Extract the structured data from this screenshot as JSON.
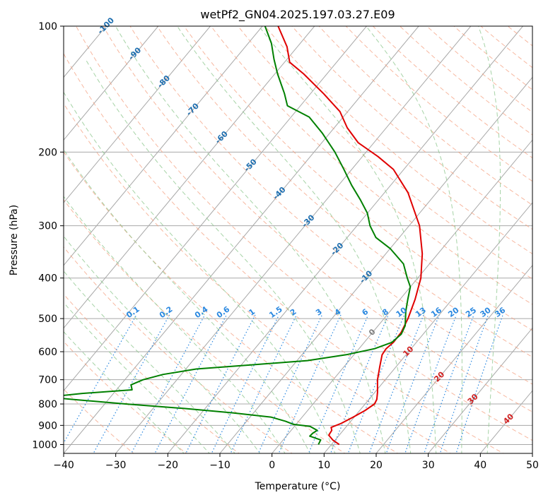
{
  "chart_data": {
    "type": "skew-t log-p",
    "title": "wetPf2_GN04.2025.197.03.27.E09",
    "xlabel": "Temperature (°C)",
    "ylabel": "Pressure (hPa)",
    "xlim": [
      -40,
      50
    ],
    "ylim": [
      1050,
      100
    ],
    "y_scale": "log",
    "grid": true,
    "x_ticks": [
      -40,
      -30,
      -20,
      -10,
      0,
      10,
      20,
      30,
      40,
      50
    ],
    "x_tick_labels": [
      "−40",
      "−30",
      "−20",
      "−10",
      "0",
      "10",
      "20",
      "30",
      "40",
      "50"
    ],
    "y_ticks": [
      100,
      200,
      300,
      400,
      500,
      600,
      700,
      800,
      900,
      1000
    ],
    "y_tick_labels": [
      "100",
      "200",
      "300",
      "400",
      "500",
      "600",
      "700",
      "800",
      "900",
      "1000"
    ],
    "series": [
      {
        "color": "#e00000",
        "points": [
          {
            "p": 1000,
            "t": 11.5
          },
          {
            "p": 975,
            "t": 9.5
          },
          {
            "p": 950,
            "t": 8.0
          },
          {
            "p": 925,
            "t": 7.8
          },
          {
            "p": 910,
            "t": 7.2
          },
          {
            "p": 890,
            "t": 8.5
          },
          {
            "p": 860,
            "t": 9.8
          },
          {
            "p": 830,
            "t": 11.0
          },
          {
            "p": 800,
            "t": 11.8
          },
          {
            "p": 780,
            "t": 11.5
          },
          {
            "p": 750,
            "t": 10.5
          },
          {
            "p": 700,
            "t": 8.5
          },
          {
            "p": 650,
            "t": 6.8
          },
          {
            "p": 610,
            "t": 5.4
          },
          {
            "p": 590,
            "t": 5.2
          },
          {
            "p": 570,
            "t": 5.6
          },
          {
            "p": 540,
            "t": 5.5
          },
          {
            "p": 500,
            "t": 4.6
          },
          {
            "p": 450,
            "t": 2.9
          },
          {
            "p": 400,
            "t": 0.6
          },
          {
            "p": 350,
            "t": -3.0
          },
          {
            "p": 300,
            "t": -8.0
          },
          {
            "p": 250,
            "t": -15.5
          },
          {
            "p": 220,
            "t": -22.0
          },
          {
            "p": 205,
            "t": -27.0
          },
          {
            "p": 190,
            "t": -33.0
          },
          {
            "p": 175,
            "t": -37.5
          },
          {
            "p": 160,
            "t": -41.5
          },
          {
            "p": 145,
            "t": -47.5
          },
          {
            "p": 130,
            "t": -54.5
          },
          {
            "p": 122,
            "t": -59.0
          },
          {
            "p": 112,
            "t": -62.0
          },
          {
            "p": 100,
            "t": -67.0
          }
        ]
      },
      {
        "color": "#008000",
        "points": [
          {
            "p": 1000,
            "t": 7.5
          },
          {
            "p": 975,
            "t": 7.2
          },
          {
            "p": 955,
            "t": 4.5
          },
          {
            "p": 940,
            "t": 4.6
          },
          {
            "p": 925,
            "t": 5.0
          },
          {
            "p": 905,
            "t": 3.0
          },
          {
            "p": 895,
            "t": -0.5
          },
          {
            "p": 880,
            "t": -2.5
          },
          {
            "p": 860,
            "t": -6.0
          },
          {
            "p": 840,
            "t": -14.0
          },
          {
            "p": 820,
            "t": -24.0
          },
          {
            "p": 800,
            "t": -36.0
          },
          {
            "p": 780,
            "t": -47.0
          },
          {
            "p": 770,
            "t": -52.0
          },
          {
            "p": 755,
            "t": -46.0
          },
          {
            "p": 740,
            "t": -37.0
          },
          {
            "p": 720,
            "t": -38.0
          },
          {
            "p": 700,
            "t": -36.5
          },
          {
            "p": 680,
            "t": -33.5
          },
          {
            "p": 660,
            "t": -28.0
          },
          {
            "p": 645,
            "t": -18.0
          },
          {
            "p": 630,
            "t": -8.0
          },
          {
            "p": 610,
            "t": -1.5
          },
          {
            "p": 590,
            "t": 3.0
          },
          {
            "p": 570,
            "t": 5.3
          },
          {
            "p": 545,
            "t": 5.8
          },
          {
            "p": 520,
            "t": 5.2
          },
          {
            "p": 480,
            "t": 3.0
          },
          {
            "p": 450,
            "t": 1.5
          },
          {
            "p": 420,
            "t": 0.0
          },
          {
            "p": 400,
            "t": -2.0
          },
          {
            "p": 370,
            "t": -5.0
          },
          {
            "p": 340,
            "t": -10.0
          },
          {
            "p": 320,
            "t": -14.5
          },
          {
            "p": 300,
            "t": -17.5
          },
          {
            "p": 280,
            "t": -20.0
          },
          {
            "p": 260,
            "t": -23.5
          },
          {
            "p": 240,
            "t": -27.5
          },
          {
            "p": 220,
            "t": -31.5
          },
          {
            "p": 200,
            "t": -36.0
          },
          {
            "p": 180,
            "t": -41.5
          },
          {
            "p": 165,
            "t": -46.5
          },
          {
            "p": 155,
            "t": -52.5
          },
          {
            "p": 145,
            "t": -55.0
          },
          {
            "p": 130,
            "t": -59.5
          },
          {
            "p": 120,
            "t": -62.5
          },
          {
            "p": 110,
            "t": -65.5
          },
          {
            "p": 100,
            "t": -69.5
          }
        ]
      }
    ],
    "mixing_ratio_labels": [
      "0.1",
      "0.2",
      "0.4",
      "0.6",
      "1",
      "1.5",
      "2",
      "3",
      "4",
      "6",
      "8",
      "10",
      "13",
      "16",
      "20",
      "25",
      "30",
      "36"
    ],
    "mixing_ratio_values": [
      0.1,
      0.2,
      0.4,
      0.6,
      1,
      1.5,
      2,
      3,
      4,
      6,
      8,
      10,
      13,
      16,
      20,
      25,
      30,
      36
    ],
    "isotherm_labels": [
      "-100",
      "-90",
      "-80",
      "-70",
      "-60",
      "-50",
      "-40",
      "-30",
      "-20",
      "-10",
      "0",
      "10",
      "20",
      "30",
      "40"
    ],
    "isotherm_values": [
      -100,
      -90,
      -80,
      -70,
      -60,
      -50,
      -40,
      -30,
      -20,
      -10,
      0,
      10,
      20,
      30,
      40
    ],
    "colors": {
      "temperature": "#e00000",
      "dewpoint": "#008000",
      "isotherm": "#a8a8a8",
      "dry_adiabat": "#f4a080",
      "moist_adiabat": "#90c890",
      "mixing_ratio": "#2a88e0",
      "isotherm_label_cold": "#1f6fb0",
      "isotherm_label_zero": "#808080",
      "isotherm_label_warm": "#d02020"
    }
  }
}
